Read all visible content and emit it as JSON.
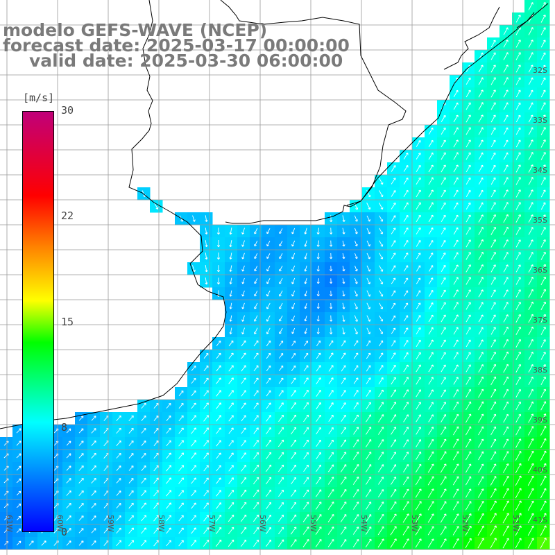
{
  "title": {
    "line1": "modelo GEFS-WAVE (NCEP)",
    "line2": "forecast date: 2025-03-17 00:00:00",
    "line3": "valid date: 2025-03-30 06:00:00"
  },
  "colorbar": {
    "unit": "[m/s]",
    "ticks": [
      "30",
      "22",
      "15",
      "8",
      "0"
    ],
    "colors": [
      "#0000ff",
      "#00ffff",
      "#00ff00",
      "#ffff00",
      "#ff8000",
      "#ff0000",
      "#c0007a"
    ]
  },
  "grid": {
    "lat_labels": [
      "32S",
      "33S",
      "34S",
      "35S",
      "36S",
      "37S",
      "38S",
      "39S",
      "40S",
      "41S"
    ],
    "lon_labels": [
      "61W",
      "60W",
      "59W",
      "58W",
      "57W",
      "56W",
      "55W",
      "54W",
      "53W",
      "52W",
      "51W"
    ]
  },
  "colors": {
    "land": "#ffffff",
    "coast": "#000000",
    "gridline": "#999999",
    "title": "#7a7a7a"
  }
}
